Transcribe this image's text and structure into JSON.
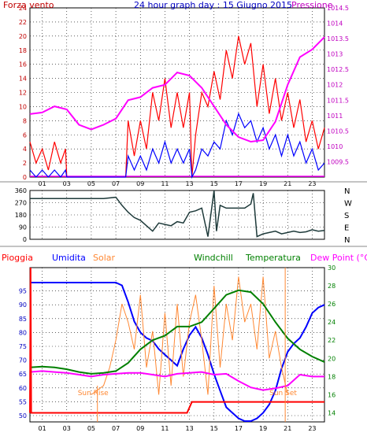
{
  "chart_data": [
    {
      "type": "line",
      "title": "24 hour graph day : 15 Giugno 2015",
      "left_axis_label": "Forza vento",
      "right_axis_label": "Pressione",
      "x_ticks": [
        "01",
        "03",
        "05",
        "07",
        "09",
        "11",
        "13",
        "15",
        "17",
        "19",
        "21",
        "23"
      ],
      "x_range": [
        0,
        24
      ],
      "left_ylim": [
        0,
        24
      ],
      "left_ticks": [
        0,
        2,
        4,
        6,
        8,
        10,
        12,
        14,
        16,
        18,
        20,
        22,
        24
      ],
      "right_ylim": [
        1009,
        1014.5
      ],
      "right_ticks": [
        "1009.5",
        "1010",
        "1010.5",
        "1011",
        "1011.5",
        "1012",
        "1012.5",
        "1013",
        "1013.5",
        "1014",
        "1014.5"
      ],
      "grid": true,
      "colors": {
        "gust": "#ff0000",
        "wind": "#0000ff",
        "pressure": "#ff00ff",
        "zero_line": "#ff00ff",
        "left_axis": "#c00000",
        "right_axis": "#c000c0"
      },
      "series": [
        {
          "name": "Forza vento",
          "role": "gust",
          "x": [
            0,
            0.5,
            1,
            1.5,
            2,
            2.5,
            2.9,
            3,
            5,
            7,
            7.8,
            8,
            8.5,
            9,
            9.5,
            10,
            10.5,
            11,
            11.5,
            12,
            12.5,
            13,
            13.2,
            13.5,
            14,
            14.5,
            15,
            15.5,
            16,
            16.5,
            17,
            17.5,
            18,
            18.5,
            19,
            19.5,
            20,
            20.5,
            21,
            21.5,
            22,
            22.5,
            23,
            23.5,
            24
          ],
          "values": [
            5,
            2,
            4,
            1,
            5,
            2,
            4,
            0,
            0,
            0,
            0,
            8,
            3,
            8,
            4,
            12,
            8,
            14,
            7,
            12,
            7,
            12,
            0,
            6,
            12,
            10,
            15,
            11,
            18,
            14,
            20,
            16,
            19,
            10,
            16,
            9,
            14,
            8,
            12,
            7,
            11,
            5,
            8,
            4,
            7
          ]
        },
        {
          "name": "",
          "role": "average",
          "x": [
            0,
            0.5,
            1,
            1.5,
            2,
            2.5,
            2.9,
            3,
            5,
            7,
            7.8,
            8,
            8.5,
            9,
            9.5,
            10,
            10.5,
            11,
            11.5,
            12,
            12.5,
            13,
            13.2,
            13.5,
            14,
            14.5,
            15,
            15.5,
            16,
            16.5,
            17,
            17.5,
            18,
            18.5,
            19,
            19.5,
            20,
            20.5,
            21,
            21.5,
            22,
            22.5,
            23,
            23.5,
            24
          ],
          "values": [
            1,
            0,
            1,
            0,
            1,
            0,
            1,
            0,
            0,
            0,
            0,
            3,
            1,
            3,
            1,
            4,
            2,
            5,
            2,
            4,
            2,
            4,
            0,
            1,
            4,
            3,
            5,
            4,
            8,
            6,
            9,
            7,
            8,
            5,
            7,
            4,
            6,
            3,
            6,
            3,
            5,
            2,
            4,
            1,
            2
          ]
        },
        {
          "name": "Pressione",
          "role": "pressure",
          "x": [
            0,
            1,
            2,
            3,
            4,
            5,
            6,
            7,
            8,
            9,
            10,
            11,
            12,
            13,
            14,
            15,
            16,
            17,
            18,
            19,
            20,
            21,
            22,
            23,
            24
          ],
          "values": [
            1011.05,
            1011.1,
            1011.3,
            1011.2,
            1010.7,
            1010.55,
            1010.7,
            1010.9,
            1011.5,
            1011.6,
            1011.9,
            1012.0,
            1012.4,
            1012.3,
            1011.9,
            1011.3,
            1010.7,
            1010.3,
            1010.15,
            1010.2,
            1010.8,
            1012.0,
            1012.9,
            1013.15,
            1013.55
          ]
        }
      ]
    },
    {
      "type": "line",
      "title": "",
      "yticks": [
        0,
        90,
        180,
        270,
        360
      ],
      "ylim": [
        0,
        360
      ],
      "right_labels": [
        "N",
        "W",
        "S",
        "E",
        "N"
      ],
      "x_range": [
        0,
        24
      ],
      "grid": true,
      "colors": {
        "direction": "#1e3a3a"
      },
      "series": [
        {
          "name": "",
          "x": [
            0,
            1,
            2,
            3,
            4,
            5,
            6,
            7,
            7.5,
            8,
            8.5,
            9,
            9.5,
            10,
            10.5,
            11,
            11.5,
            12,
            12.5,
            13,
            13.5,
            14,
            14.5,
            15,
            15.2,
            15.5,
            16,
            16.5,
            17,
            17.5,
            18,
            18.2,
            18.5,
            19,
            19.5,
            20,
            20.5,
            21,
            21.5,
            22,
            22.5,
            23,
            23.5,
            24
          ],
          "values": [
            300,
            300,
            300,
            300,
            300,
            300,
            300,
            310,
            250,
            200,
            160,
            140,
            100,
            60,
            120,
            110,
            100,
            130,
            120,
            200,
            210,
            230,
            20,
            360,
            60,
            250,
            230,
            230,
            230,
            230,
            260,
            340,
            20,
            40,
            50,
            60,
            40,
            50,
            60,
            50,
            55,
            70,
            60,
            65
          ]
        }
      ]
    },
    {
      "type": "line",
      "title": "",
      "legend": [
        "Pioggia",
        "Umidita",
        "Solar",
        "Windchill",
        "Temperatura",
        "Dew Point (°C)"
      ],
      "left_ylim": [
        50,
        100
      ],
      "left_ticks": [
        50,
        55,
        60,
        65,
        70,
        75,
        80,
        85,
        90,
        95
      ],
      "right_ylim": [
        13,
        30
      ],
      "right_ticks": [
        14,
        16,
        18,
        20,
        22,
        24,
        26,
        28,
        30
      ],
      "x_ticks": [
        "01",
        "03",
        "05",
        "07",
        "09",
        "11",
        "13",
        "15",
        "17",
        "19",
        "21",
        "23"
      ],
      "x_range": [
        0,
        24
      ],
      "annotations": [
        "Sun Rise",
        "Sun Set"
      ],
      "grid": true,
      "colors": {
        "rain": "#ff0000",
        "humidity": "#0000ff",
        "solar": "#ff8833",
        "windchill": "#008000",
        "temperature": "#008000",
        "dewpoint": "#ff00ff",
        "left_axis": "#0000c0",
        "right_axis": "#008000"
      },
      "series": [
        {
          "name": "Umidita",
          "role": "humidity",
          "x": [
            0,
            1,
            2,
            3,
            4,
            5,
            6,
            7,
            7.5,
            8,
            8.5,
            9,
            9.5,
            10,
            10.5,
            11,
            11.5,
            12,
            12.5,
            13,
            13.5,
            14,
            14.5,
            15,
            15.5,
            16,
            16.5,
            17,
            17.5,
            18,
            18.5,
            19,
            19.5,
            20,
            20.5,
            21,
            21.5,
            22,
            22.5,
            23,
            23.5,
            24
          ],
          "values": [
            98,
            98,
            98,
            98,
            98,
            98,
            98,
            98,
            97,
            91,
            84,
            80,
            78,
            77,
            74,
            72,
            70,
            68,
            74,
            79,
            82,
            78,
            72,
            65,
            59,
            53,
            51,
            49,
            48,
            48,
            49,
            51,
            54,
            59,
            67,
            73,
            76,
            78,
            82,
            87,
            89,
            90
          ]
        },
        {
          "name": "Solar",
          "role": "solar",
          "x": [
            5,
            6,
            6.5,
            7,
            7.5,
            8,
            8.5,
            9,
            9.5,
            10,
            10.5,
            11,
            11.5,
            12,
            12.5,
            13,
            13.5,
            14,
            14.5,
            15,
            15.5,
            16,
            16.5,
            17,
            17.5,
            18,
            18.5,
            19,
            19.5,
            20,
            20.5,
            21
          ],
          "values": [
            16,
            17,
            19,
            22,
            26,
            24,
            21,
            27,
            19,
            23,
            16,
            25,
            17,
            26,
            18,
            24,
            27,
            22,
            16,
            28,
            19,
            26,
            22,
            29,
            24,
            26,
            21,
            29,
            20,
            23,
            19,
            16
          ]
        },
        {
          "name": "Temperatura",
          "role": "temperature",
          "x": [
            0,
            1,
            2,
            3,
            4,
            5,
            6,
            7,
            8,
            9,
            10,
            11,
            12,
            13,
            14,
            15,
            16,
            17,
            18,
            19,
            20,
            21,
            22,
            23,
            24
          ],
          "values": [
            19,
            19.1,
            19,
            18.8,
            18.5,
            18.3,
            18.4,
            18.6,
            19.5,
            21,
            22,
            22.5,
            23.5,
            23.5,
            24,
            25.5,
            27,
            27.5,
            27.3,
            26,
            24,
            22.2,
            21,
            20.2,
            19.6
          ]
        },
        {
          "name": "Dew Point (°C)",
          "role": "dewpoint",
          "x": [
            0,
            1,
            2,
            3,
            4,
            5,
            6,
            7,
            8,
            9,
            10,
            11,
            12,
            13,
            14,
            15,
            16,
            17,
            18,
            19,
            20,
            21,
            22,
            23,
            24
          ],
          "values": [
            18.5,
            18.6,
            18.5,
            18.4,
            18.2,
            18,
            18.2,
            18.3,
            18.4,
            18.4,
            18.2,
            18,
            18.3,
            18.4,
            18.5,
            18.2,
            18.3,
            17.5,
            16.8,
            16.5,
            16.7,
            17,
            18.2,
            18,
            18
          ]
        },
        {
          "name": "Pioggia",
          "role": "rain",
          "x": [
            0,
            0.05,
            0.1,
            12.8,
            13.2,
            24
          ],
          "values": [
            14,
            30,
            14,
            14,
            15.2,
            15.2
          ]
        }
      ]
    }
  ]
}
